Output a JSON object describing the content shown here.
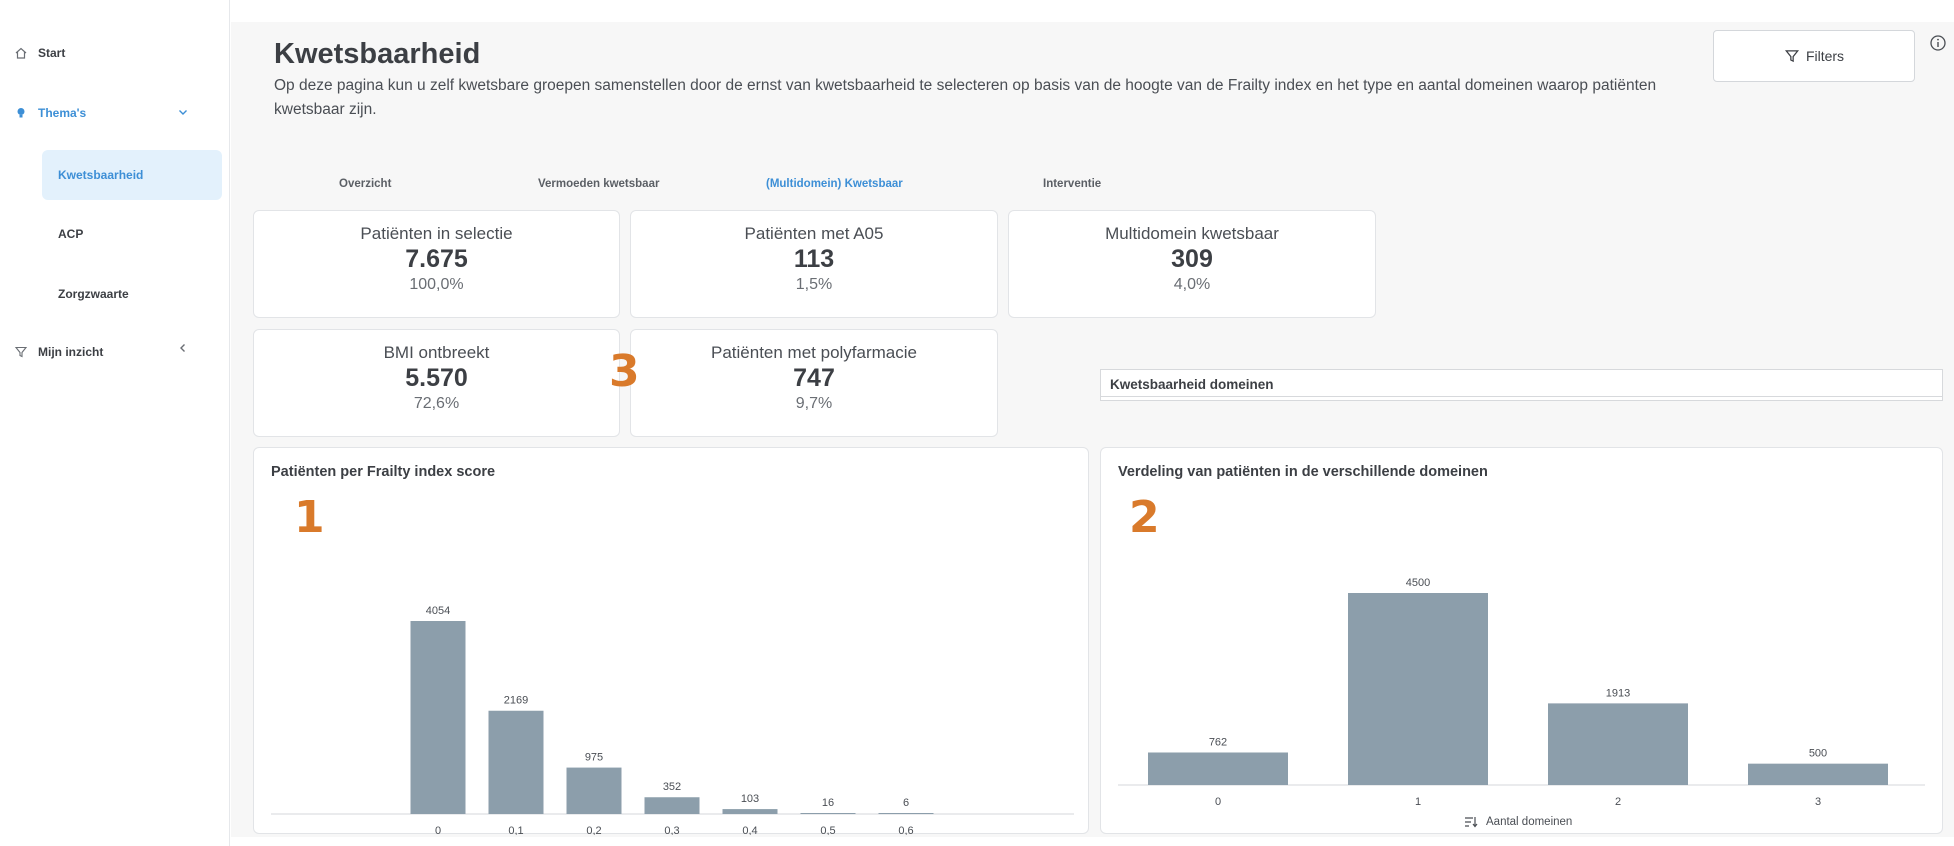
{
  "sidebar": {
    "items": [
      {
        "label": "Start"
      },
      {
        "label": "Thema's"
      },
      {
        "label": "Kwetsbaarheid"
      },
      {
        "label": "ACP"
      },
      {
        "label": "Zorgzwaarte"
      },
      {
        "label": "Mijn inzicht"
      }
    ]
  },
  "header": {
    "title": "Kwetsbaarheid",
    "description": "Op deze pagina kun u zelf kwetsbare groepen samenstellen door de ernst van kwetsbaarheid te selecteren op basis van de hoogte van de Frailty index en het type en aantal domeinen waarop patiënten kwetsbaar zijn.",
    "filters_label": "Filters"
  },
  "tabs": [
    {
      "label": "Overzicht"
    },
    {
      "label": "Vermoeden kwetsbaar"
    },
    {
      "label": "(Multidomein) Kwetsbaar"
    },
    {
      "label": "Interventie"
    }
  ],
  "cards": [
    {
      "label": "Patiënten in selectie",
      "value": "7.675",
      "pct": "100,0%"
    },
    {
      "label": "Patiënten met A05",
      "value": "113",
      "pct": "1,5%"
    },
    {
      "label": "Multidomein kwetsbaar",
      "value": "309",
      "pct": "4,0%"
    },
    {
      "label": "BMI ontbreekt",
      "value": "5.570",
      "pct": "72,6%"
    },
    {
      "label": "Patiënten met polyfarmacie",
      "value": "747",
      "pct": "9,7%"
    }
  ],
  "domain_box": {
    "title": "Kwetsbaarheid domeinen"
  },
  "annotations": [
    "1",
    "2",
    "3"
  ],
  "colors": {
    "accent": "#3d8fd6",
    "bar": "#8c9eab",
    "annotation": "#d97a2b"
  },
  "chart_data": [
    {
      "type": "bar",
      "title": "Patiënten per Frailty index score",
      "categories": [
        "0",
        "0,1",
        "0,2",
        "0,3",
        "0,4",
        "0,5",
        "0,6"
      ],
      "values": [
        4054,
        2169,
        975,
        352,
        103,
        16,
        6
      ],
      "xlabel": "",
      "ylabel": "",
      "ylim": [
        0,
        4054
      ],
      "grid": false
    },
    {
      "type": "bar",
      "title": "Verdeling van patiënten in de verschillende domeinen",
      "categories": [
        "0",
        "1",
        "2",
        "3"
      ],
      "values": [
        762,
        4500,
        1913,
        500
      ],
      "xlabel": "Aantal domeinen",
      "ylabel": "",
      "ylim": [
        0,
        4500
      ],
      "grid": false
    }
  ]
}
